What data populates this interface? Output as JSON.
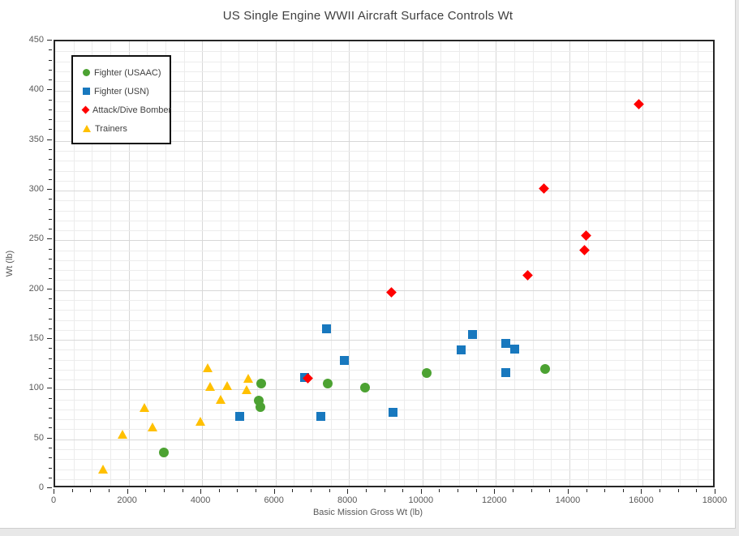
{
  "chart_data": {
    "type": "scatter",
    "title": "US Single Engine WWII Aircraft Surface Controls Wt",
    "xlabel": "Basic Mission Gross Wt (lb)",
    "ylabel": "Wt (lb)",
    "xlim": [
      0,
      18000
    ],
    "ylim": [
      0,
      450
    ],
    "x_major_step": 2000,
    "x_minor_step": 500,
    "y_major_step": 50,
    "y_minor_step": 10,
    "grid": "major and minor gridlines on",
    "legend_position": "top-left inside plot",
    "series": [
      {
        "name": "Fighter (USAAC)",
        "marker": "circle",
        "color": "#4ca232",
        "points": [
          [
            2960,
            37
          ],
          [
            5550,
            89
          ],
          [
            5590,
            82
          ],
          [
            5610,
            106
          ],
          [
            7410,
            106
          ],
          [
            8440,
            102
          ],
          [
            10120,
            117
          ],
          [
            13340,
            121
          ]
        ]
      },
      {
        "name": "Fighter (USN)",
        "marker": "square",
        "color": "#1878be",
        "points": [
          [
            5030,
            73
          ],
          [
            6790,
            112
          ],
          [
            7240,
            73
          ],
          [
            7390,
            161
          ],
          [
            7880,
            129
          ],
          [
            9200,
            77
          ],
          [
            11060,
            140
          ],
          [
            11360,
            155
          ],
          [
            12260,
            117
          ],
          [
            12260,
            146
          ],
          [
            12500,
            141
          ]
        ]
      },
      {
        "name": "Attack/Dive Bomber",
        "marker": "diamond",
        "color": "#ff0000",
        "points": [
          [
            6880,
            111
          ],
          [
            9150,
            198
          ],
          [
            12870,
            215
          ],
          [
            13310,
            302
          ],
          [
            14400,
            240
          ],
          [
            14450,
            255
          ],
          [
            15900,
            387
          ]
        ]
      },
      {
        "name": "Trainers",
        "marker": "triangle",
        "color": "#ffc000",
        "points": [
          [
            1300,
            20
          ],
          [
            1840,
            55
          ],
          [
            2430,
            82
          ],
          [
            2650,
            62
          ],
          [
            3960,
            68
          ],
          [
            4140,
            122
          ],
          [
            4210,
            103
          ],
          [
            4500,
            90
          ],
          [
            4690,
            104
          ],
          [
            5220,
            100
          ],
          [
            5260,
            111
          ]
        ]
      }
    ],
    "colors": {
      "grid_minor": "#ececec",
      "grid_major": "#d8d8d8",
      "axis_line": "#262626",
      "tick_text": "#595959",
      "title_text": "#3f3f3f",
      "plot_bg": "#ffffff",
      "page_bg": "#e8e8e8"
    }
  }
}
